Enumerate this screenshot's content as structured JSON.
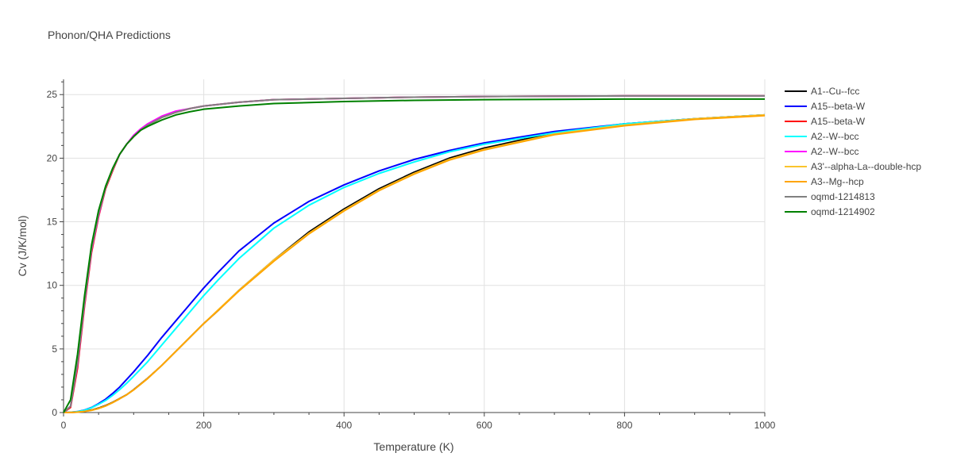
{
  "chart_data": {
    "type": "line",
    "title": "Phonon/QHA Predictions",
    "xlabel": "Temperature (K)",
    "ylabel": "Cv (J/K/mol)",
    "xlim": [
      0,
      1000
    ],
    "ylim": [
      0,
      26.2
    ],
    "xticks": [
      0,
      200,
      400,
      600,
      800,
      1000
    ],
    "yticks": [
      0,
      5,
      10,
      15,
      20,
      25
    ],
    "grid": true,
    "legend_position": "right",
    "series": [
      {
        "name": "A1--Cu--fcc",
        "color": "#000000",
        "x": [
          0,
          10,
          20,
          30,
          40,
          50,
          60,
          70,
          80,
          90,
          100,
          120,
          140,
          160,
          180,
          200,
          220,
          250,
          300,
          350,
          400,
          450,
          500,
          550,
          600,
          700,
          800,
          900,
          1000
        ],
        "y": [
          0,
          0.01,
          0.04,
          0.1,
          0.2,
          0.35,
          0.55,
          0.8,
          1.1,
          1.4,
          1.8,
          2.7,
          3.7,
          4.8,
          5.9,
          7.0,
          8.0,
          9.6,
          12.0,
          14.2,
          16.0,
          17.6,
          18.9,
          20.0,
          20.8,
          22.0,
          22.7,
          23.1,
          23.4
        ]
      },
      {
        "name": "A15--beta-W",
        "color": "#0000ff",
        "x": [
          0,
          10,
          20,
          30,
          40,
          50,
          60,
          70,
          80,
          90,
          100,
          120,
          140,
          160,
          180,
          200,
          220,
          250,
          300,
          350,
          400,
          450,
          500,
          550,
          600,
          700,
          800,
          900,
          1000
        ],
        "y": [
          0,
          0.02,
          0.08,
          0.2,
          0.4,
          0.7,
          1.05,
          1.5,
          2.0,
          2.6,
          3.2,
          4.5,
          5.9,
          7.2,
          8.5,
          9.8,
          11.0,
          12.7,
          14.9,
          16.6,
          17.9,
          19.0,
          19.9,
          20.6,
          21.2,
          22.1,
          22.7,
          23.1,
          23.4
        ]
      },
      {
        "name": "A15--beta-W",
        "color": "#ff0000",
        "x": [
          0,
          10,
          20,
          30,
          40,
          50,
          60,
          70,
          80,
          90,
          100,
          110,
          120,
          140,
          160,
          180,
          200,
          250,
          300,
          400,
          500,
          600,
          800,
          1000
        ],
        "y": [
          0,
          0.4,
          3.5,
          8.4,
          12.6,
          15.4,
          17.6,
          19.0,
          20.3,
          21.1,
          21.7,
          22.2,
          22.6,
          23.2,
          23.6,
          23.9,
          24.1,
          24.4,
          24.6,
          24.7,
          24.8,
          24.85,
          24.9,
          24.9
        ]
      },
      {
        "name": "A2--W--bcc",
        "color": "#00ffff",
        "x": [
          0,
          10,
          20,
          30,
          40,
          50,
          60,
          70,
          80,
          90,
          100,
          120,
          140,
          160,
          180,
          200,
          220,
          250,
          300,
          350,
          400,
          450,
          500,
          550,
          600,
          700,
          800,
          900,
          1000
        ],
        "y": [
          0,
          0.02,
          0.07,
          0.18,
          0.38,
          0.65,
          0.95,
          1.35,
          1.8,
          2.3,
          2.85,
          4.0,
          5.3,
          6.6,
          7.9,
          9.2,
          10.4,
          12.1,
          14.5,
          16.3,
          17.7,
          18.8,
          19.7,
          20.5,
          21.1,
          22.0,
          22.7,
          23.1,
          23.4
        ]
      },
      {
        "name": "A2--W--bcc",
        "color": "#ff00ff",
        "x": [
          0,
          10,
          20,
          30,
          40,
          50,
          60,
          70,
          80,
          90,
          100,
          110,
          120,
          140,
          160,
          180,
          200,
          250,
          300,
          400,
          500,
          600,
          800,
          1000
        ],
        "y": [
          0,
          0.5,
          3.8,
          8.6,
          12.8,
          15.5,
          17.7,
          19.1,
          20.3,
          21.1,
          21.8,
          22.3,
          22.7,
          23.3,
          23.7,
          23.9,
          24.1,
          24.4,
          24.6,
          24.7,
          24.8,
          24.85,
          24.9,
          24.9
        ]
      },
      {
        "name": "A3'--alpha-La--double-hcp",
        "color": "#fac42d",
        "x": [
          0,
          10,
          20,
          30,
          40,
          50,
          60,
          70,
          80,
          90,
          100,
          120,
          140,
          160,
          180,
          200,
          220,
          250,
          300,
          350,
          400,
          450,
          500,
          550,
          600,
          700,
          800,
          900,
          1000
        ],
        "y": [
          0,
          0.01,
          0.03,
          0.09,
          0.18,
          0.32,
          0.52,
          0.78,
          1.08,
          1.4,
          1.78,
          2.68,
          3.7,
          4.8,
          5.9,
          7.0,
          8.05,
          9.6,
          12.0,
          14.1,
          15.9,
          17.5,
          18.8,
          19.9,
          20.7,
          21.9,
          22.6,
          23.1,
          23.4
        ]
      },
      {
        "name": "A3--Mg--hcp",
        "color": "#ffa500",
        "x": [
          0,
          10,
          20,
          30,
          40,
          50,
          60,
          70,
          80,
          90,
          100,
          120,
          140,
          160,
          180,
          200,
          220,
          250,
          300,
          350,
          400,
          450,
          500,
          550,
          600,
          700,
          800,
          900,
          1000
        ],
        "y": [
          0,
          0.01,
          0.03,
          0.09,
          0.18,
          0.32,
          0.52,
          0.78,
          1.08,
          1.4,
          1.78,
          2.68,
          3.7,
          4.8,
          5.9,
          7.0,
          8.0,
          9.55,
          11.9,
          14.05,
          15.85,
          17.45,
          18.75,
          19.85,
          20.65,
          21.85,
          22.55,
          23.05,
          23.35
        ]
      },
      {
        "name": "oqmd-1214813",
        "color": "#808080",
        "x": [
          0,
          10,
          20,
          30,
          40,
          50,
          60,
          70,
          80,
          90,
          100,
          110,
          120,
          140,
          160,
          180,
          200,
          250,
          300,
          400,
          500,
          600,
          800,
          1000
        ],
        "y": [
          0,
          0.5,
          3.9,
          8.7,
          12.9,
          15.6,
          17.7,
          19.1,
          20.3,
          21.1,
          21.7,
          22.2,
          22.6,
          23.2,
          23.6,
          23.9,
          24.1,
          24.4,
          24.6,
          24.7,
          24.8,
          24.85,
          24.9,
          24.9
        ]
      },
      {
        "name": "oqmd-1214902",
        "color": "#008000",
        "x": [
          0,
          10,
          20,
          30,
          40,
          50,
          60,
          70,
          80,
          90,
          100,
          110,
          120,
          140,
          160,
          180,
          200,
          250,
          300,
          400,
          500,
          600,
          800,
          1000
        ],
        "y": [
          0,
          1.0,
          4.6,
          9.2,
          13.2,
          15.9,
          17.8,
          19.2,
          20.3,
          21.1,
          21.7,
          22.2,
          22.5,
          23.0,
          23.4,
          23.65,
          23.85,
          24.1,
          24.3,
          24.45,
          24.55,
          24.6,
          24.65,
          24.65
        ]
      }
    ]
  }
}
